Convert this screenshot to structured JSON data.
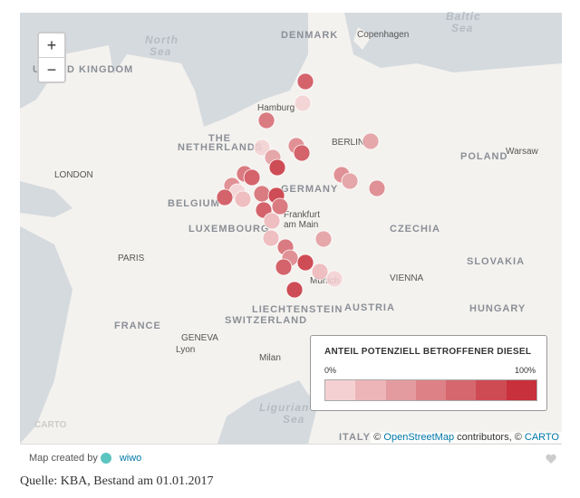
{
  "zoom": {
    "in": "+",
    "out": "−"
  },
  "map_labels": [
    "North",
    "Sea",
    "Baltic",
    "Sea",
    "DENMARK",
    "Copenhagen",
    "UNITED KINGDOM",
    "Hamburg",
    "THE",
    "NETHERLANDS",
    "BERLIN",
    "Warsaw",
    "POLAND",
    "LONDON",
    "GERMANY",
    "BELGIUM",
    "Frankfurt",
    "am Main",
    "LUXEMBOURG",
    "CZECHIA",
    "PARIS",
    "SLOVAKIA",
    "VIENNA",
    "Munich",
    "LIECHTENSTEIN",
    "AUSTRIA",
    "HUNGARY",
    "FRANCE",
    "SWITZERLAND",
    "GENEVA",
    "Lyon",
    "Milan",
    "Ligurian",
    "Sea",
    "ITALY",
    "CARTO"
  ],
  "legend": {
    "title": "ANTEIL POTENZIELL BETROFFENER DIESEL",
    "min": "0%",
    "max": "100%"
  },
  "attribution": {
    "prefix": "©",
    "osm": "OpenStreetMap",
    "middle": "contributors, ©",
    "carto": "CARTO"
  },
  "footer": {
    "created_by": "Map created by",
    "brand": "wiwo"
  },
  "source": "Quelle: KBA, Bestand am 01.01.2017"
}
